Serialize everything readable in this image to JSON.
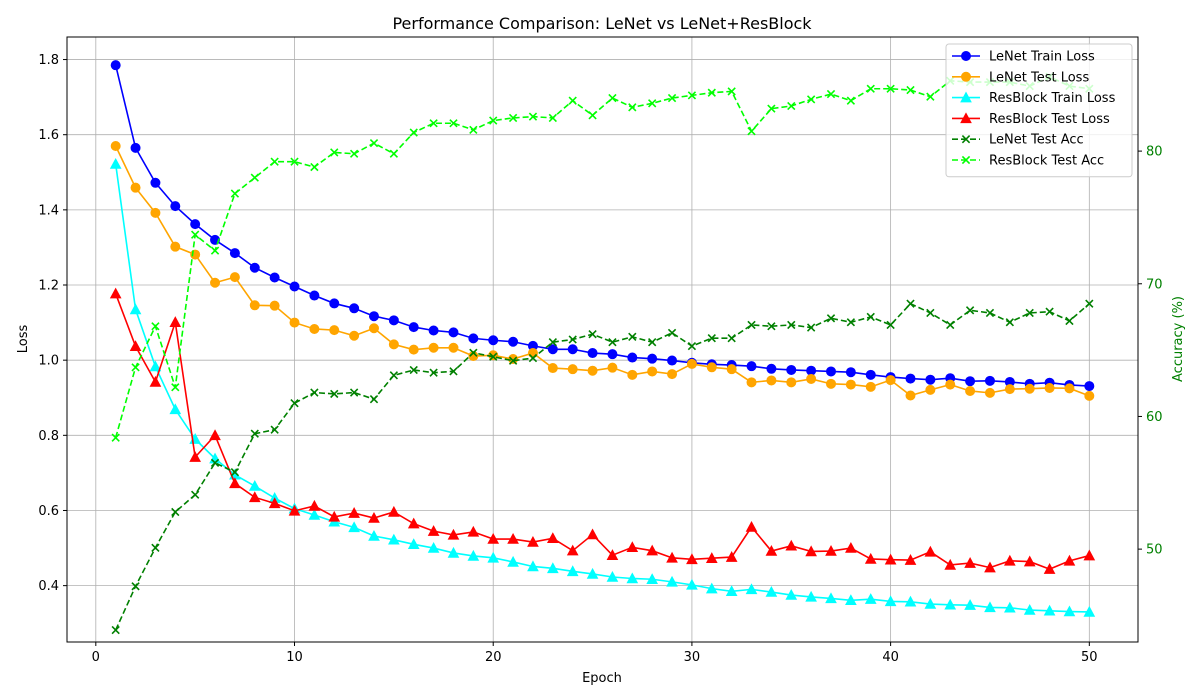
{
  "chart_data": {
    "type": "line",
    "title": "Performance Comparison: LeNet vs LeNet+ResBlock",
    "xlabel": "Epoch",
    "ylabel": "Loss",
    "ylabel_right": "Accuracy (%)",
    "x": [
      1,
      2,
      3,
      4,
      5,
      6,
      7,
      8,
      9,
      10,
      11,
      12,
      13,
      14,
      15,
      16,
      17,
      18,
      19,
      20,
      21,
      22,
      23,
      24,
      25,
      26,
      27,
      28,
      29,
      30,
      31,
      32,
      33,
      34,
      35,
      36,
      37,
      38,
      39,
      40,
      41,
      42,
      43,
      44,
      45,
      46,
      47,
      48,
      49,
      50
    ],
    "xlim": [
      -1.45,
      52.45
    ],
    "ylim": [
      0.25,
      1.86
    ],
    "ylim_right": [
      43.0,
      88.6
    ],
    "xticks": [
      0,
      10,
      20,
      30,
      40,
      50
    ],
    "yticks": [
      "0.4",
      "0.6",
      "0.8",
      "1.0",
      "1.2",
      "1.4",
      "1.6",
      "1.8"
    ],
    "yticks_right": [
      "50",
      "60",
      "70",
      "80"
    ],
    "grid": true,
    "legend_position": "upper right",
    "series": [
      {
        "name": "LeNet Train Loss",
        "axis": "left",
        "color": "#0000ff",
        "marker": "circle",
        "linestyle": "solid",
        "values": [
          1.785,
          1.565,
          1.472,
          1.41,
          1.362,
          1.32,
          1.285,
          1.246,
          1.22,
          1.196,
          1.172,
          1.151,
          1.138,
          1.117,
          1.106,
          1.088,
          1.079,
          1.074,
          1.058,
          1.053,
          1.049,
          1.038,
          1.029,
          1.029,
          1.019,
          1.016,
          1.007,
          1.004,
          0.999,
          0.993,
          0.989,
          0.987,
          0.984,
          0.977,
          0.974,
          0.972,
          0.97,
          0.968,
          0.961,
          0.955,
          0.951,
          0.948,
          0.952,
          0.944,
          0.945,
          0.942,
          0.937,
          0.94,
          0.934,
          0.931
        ]
      },
      {
        "name": "LeNet Test Loss",
        "axis": "left",
        "color": "#ffa500",
        "marker": "circle",
        "linestyle": "solid",
        "values": [
          1.57,
          1.459,
          1.392,
          1.302,
          1.281,
          1.206,
          1.221,
          1.146,
          1.145,
          1.1,
          1.083,
          1.08,
          1.065,
          1.085,
          1.042,
          1.028,
          1.033,
          1.033,
          1.011,
          1.013,
          1.003,
          1.019,
          0.979,
          0.976,
          0.972,
          0.98,
          0.961,
          0.97,
          0.963,
          0.99,
          0.981,
          0.976,
          0.941,
          0.946,
          0.941,
          0.95,
          0.937,
          0.935,
          0.929,
          0.947,
          0.906,
          0.921,
          0.935,
          0.918,
          0.913,
          0.923,
          0.924,
          0.926,
          0.925,
          0.905
        ]
      },
      {
        "name": "ResBlock Train Loss",
        "axis": "left",
        "color": "#00ffff",
        "marker": "triangle",
        "linestyle": "solid",
        "values": [
          1.522,
          1.135,
          0.983,
          0.869,
          0.79,
          0.738,
          0.695,
          0.665,
          0.633,
          0.605,
          0.588,
          0.57,
          0.555,
          0.532,
          0.522,
          0.51,
          0.5,
          0.487,
          0.479,
          0.474,
          0.463,
          0.451,
          0.446,
          0.438,
          0.431,
          0.423,
          0.419,
          0.417,
          0.41,
          0.402,
          0.392,
          0.385,
          0.39,
          0.383,
          0.375,
          0.37,
          0.366,
          0.361,
          0.364,
          0.358,
          0.357,
          0.351,
          0.349,
          0.348,
          0.342,
          0.341,
          0.335,
          0.333,
          0.331,
          0.33
        ]
      },
      {
        "name": "ResBlock Test Loss",
        "axis": "left",
        "color": "#ff0000",
        "marker": "triangle",
        "linestyle": "solid",
        "values": [
          1.177,
          1.037,
          0.942,
          1.101,
          0.742,
          0.8,
          0.672,
          0.635,
          0.619,
          0.599,
          0.612,
          0.583,
          0.593,
          0.58,
          0.596,
          0.565,
          0.545,
          0.535,
          0.543,
          0.524,
          0.524,
          0.516,
          0.526,
          0.493,
          0.536,
          0.481,
          0.502,
          0.493,
          0.474,
          0.47,
          0.473,
          0.476,
          0.556,
          0.492,
          0.506,
          0.491,
          0.492,
          0.5,
          0.471,
          0.469,
          0.468,
          0.49,
          0.455,
          0.46,
          0.448,
          0.466,
          0.464,
          0.444,
          0.466,
          0.48
        ]
      },
      {
        "name": "LeNet Test Acc",
        "axis": "right",
        "color": "#008000",
        "marker": "x",
        "linestyle": "dashed",
        "values": [
          43.9,
          47.2,
          50.1,
          52.8,
          54.1,
          56.5,
          55.8,
          58.7,
          59.0,
          61.0,
          61.8,
          61.7,
          61.8,
          61.3,
          63.1,
          63.5,
          63.3,
          63.4,
          64.8,
          64.5,
          64.2,
          64.4,
          65.6,
          65.8,
          66.2,
          65.6,
          66.0,
          65.6,
          66.3,
          65.3,
          65.9,
          65.9,
          66.9,
          66.8,
          66.9,
          66.7,
          67.4,
          67.1,
          67.5,
          66.9,
          68.5,
          67.8,
          66.9,
          68.0,
          67.8,
          67.1,
          67.8,
          67.9,
          67.2,
          68.5
        ]
      },
      {
        "name": "ResBlock Test Acc",
        "axis": "right",
        "color": "#00ff00",
        "marker": "x",
        "linestyle": "dashed",
        "values": [
          58.4,
          63.7,
          66.8,
          62.2,
          73.7,
          72.5,
          76.8,
          78.0,
          79.2,
          79.2,
          78.8,
          79.9,
          79.8,
          80.6,
          79.8,
          81.4,
          82.1,
          82.1,
          81.6,
          82.3,
          82.5,
          82.6,
          82.5,
          83.8,
          82.7,
          84.0,
          83.3,
          83.6,
          84.0,
          84.2,
          84.4,
          84.5,
          81.5,
          83.2,
          83.4,
          83.9,
          84.3,
          83.8,
          84.7,
          84.7,
          84.6,
          84.1,
          85.3,
          85.2,
          85.2,
          85.2,
          84.9,
          85.6,
          84.9,
          84.7
        ]
      }
    ]
  }
}
